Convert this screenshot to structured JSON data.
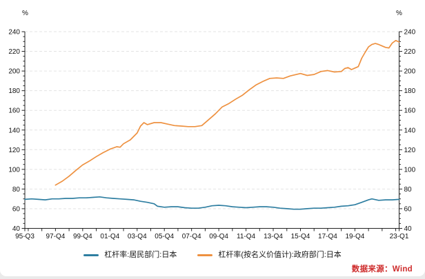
{
  "source_note": "数据来源：Wind",
  "source_color": "#ce2b2b",
  "chart_data": {
    "type": "line",
    "title": "",
    "unit_left": "%",
    "unit_right": "%",
    "xlabel": "",
    "ylabel": "%",
    "ylim": [
      40,
      240
    ],
    "yticks": [
      40,
      60,
      80,
      100,
      120,
      140,
      160,
      180,
      200,
      220,
      240
    ],
    "ytick_minor_step": 5,
    "grid": "horizontal-dashed",
    "gridline_color": "#e3e3e3",
    "axis_color": "#222222",
    "tick_label_color": "#111111",
    "x_range_quarters": [
      "95-Q3",
      "23-Q1"
    ],
    "xtick_labels": [
      "95-Q3",
      "97-Q4",
      "99-Q4",
      "01-Q4",
      "03-Q4",
      "05-Q4",
      "07-Q4",
      "09-Q4",
      "11-Q4",
      "13-Q4",
      "15-Q4",
      "17-Q4",
      "19-Q4",
      "23-Q1"
    ],
    "legend_position": "bottom-center",
    "series": [
      {
        "name": "杠杆率:居民部门:日本",
        "color": "#2e7ea1",
        "points": [
          [
            "95-Q3",
            69.5
          ],
          [
            "96-Q1",
            70
          ],
          [
            "96-Q3",
            69.5
          ],
          [
            "97-Q1",
            69
          ],
          [
            "97-Q3",
            70
          ],
          [
            "98-Q1",
            70
          ],
          [
            "98-Q3",
            70.5
          ],
          [
            "99-Q1",
            70.5
          ],
          [
            "99-Q3",
            71
          ],
          [
            "00-Q1",
            71
          ],
          [
            "00-Q3",
            71.5
          ],
          [
            "01-Q1",
            72
          ],
          [
            "01-Q3",
            71
          ],
          [
            "02-Q1",
            70.5
          ],
          [
            "02-Q3",
            70
          ],
          [
            "03-Q1",
            69.5
          ],
          [
            "03-Q3",
            69
          ],
          [
            "04-Q1",
            67.5
          ],
          [
            "04-Q3",
            66.5
          ],
          [
            "05-Q1",
            65
          ],
          [
            "05-Q2",
            62.5
          ],
          [
            "05-Q4",
            61.5
          ],
          [
            "06-Q2",
            62
          ],
          [
            "06-Q4",
            62
          ],
          [
            "07-Q2",
            61
          ],
          [
            "07-Q4",
            60.5
          ],
          [
            "08-Q2",
            60.5
          ],
          [
            "08-Q4",
            61.5
          ],
          [
            "09-Q2",
            63
          ],
          [
            "09-Q4",
            63.5
          ],
          [
            "10-Q2",
            63
          ],
          [
            "10-Q4",
            62
          ],
          [
            "11-Q2",
            61.5
          ],
          [
            "11-Q4",
            61
          ],
          [
            "12-Q2",
            61.5
          ],
          [
            "12-Q4",
            62
          ],
          [
            "13-Q2",
            62
          ],
          [
            "13-Q4",
            61.5
          ],
          [
            "14-Q2",
            60.5
          ],
          [
            "14-Q4",
            60
          ],
          [
            "15-Q2",
            59.5
          ],
          [
            "15-Q4",
            59.5
          ],
          [
            "16-Q2",
            60
          ],
          [
            "16-Q4",
            60.5
          ],
          [
            "17-Q2",
            60.5
          ],
          [
            "17-Q4",
            61
          ],
          [
            "18-Q2",
            61.5
          ],
          [
            "18-Q4",
            62.5
          ],
          [
            "19-Q2",
            63
          ],
          [
            "19-Q4",
            64
          ],
          [
            "20-Q2",
            66.5
          ],
          [
            "20-Q4",
            69
          ],
          [
            "21-Q1",
            70
          ],
          [
            "21-Q3",
            68.5
          ],
          [
            "22-Q1",
            69
          ],
          [
            "22-Q3",
            69
          ],
          [
            "23-Q1",
            69.5
          ]
        ]
      },
      {
        "name": "杠杆率(按名义价值计):政府部门:日本",
        "color": "#ee9140",
        "points": [
          [
            "97-Q4",
            84
          ],
          [
            "98-Q2",
            88
          ],
          [
            "98-Q4",
            93
          ],
          [
            "99-Q2",
            99
          ],
          [
            "99-Q4",
            104.5
          ],
          [
            "00-Q2",
            108.5
          ],
          [
            "00-Q4",
            113
          ],
          [
            "01-Q2",
            117
          ],
          [
            "01-Q4",
            120.5
          ],
          [
            "02-Q2",
            123
          ],
          [
            "02-Q3",
            122.5
          ],
          [
            "02-Q4",
            126
          ],
          [
            "03-Q2",
            130
          ],
          [
            "03-Q4",
            137
          ],
          [
            "04-Q1",
            144
          ],
          [
            "04-Q2",
            147.5
          ],
          [
            "04-Q3",
            145.5
          ],
          [
            "05-Q1",
            147.5
          ],
          [
            "05-Q3",
            147.5
          ],
          [
            "06-Q1",
            146
          ],
          [
            "06-Q3",
            144.5
          ],
          [
            "07-Q1",
            144
          ],
          [
            "07-Q3",
            143.5
          ],
          [
            "08-Q1",
            143.5
          ],
          [
            "08-Q3",
            144.5
          ],
          [
            "09-Q1",
            150.5
          ],
          [
            "09-Q3",
            156.5
          ],
          [
            "10-Q1",
            163.5
          ],
          [
            "10-Q3",
            167
          ],
          [
            "11-Q1",
            171.5
          ],
          [
            "11-Q3",
            175.5
          ],
          [
            "12-Q1",
            181
          ],
          [
            "12-Q3",
            186
          ],
          [
            "13-Q1",
            189.5
          ],
          [
            "13-Q3",
            192.5
          ],
          [
            "14-Q1",
            193
          ],
          [
            "14-Q3",
            192.5
          ],
          [
            "15-Q1",
            195
          ],
          [
            "15-Q4",
            197.5
          ],
          [
            "16-Q2",
            195.5
          ],
          [
            "16-Q4",
            196.5
          ],
          [
            "17-Q2",
            199.5
          ],
          [
            "17-Q4",
            200.5
          ],
          [
            "18-Q2",
            199
          ],
          [
            "18-Q4",
            199.5
          ],
          [
            "19-Q1",
            202.5
          ],
          [
            "19-Q2",
            203.5
          ],
          [
            "19-Q3",
            201.5
          ],
          [
            "19-Q4",
            203
          ],
          [
            "20-Q1",
            204.5
          ],
          [
            "20-Q2",
            213
          ],
          [
            "20-Q3",
            219
          ],
          [
            "20-Q4",
            224.5
          ],
          [
            "21-Q1",
            227
          ],
          [
            "21-Q2",
            228
          ],
          [
            "21-Q3",
            227
          ],
          [
            "21-Q4",
            225.5
          ],
          [
            "22-Q1",
            224
          ],
          [
            "22-Q2",
            223.5
          ],
          [
            "22-Q3",
            228.5
          ],
          [
            "22-Q4",
            231
          ],
          [
            "23-Q1",
            229.5
          ]
        ]
      }
    ]
  }
}
